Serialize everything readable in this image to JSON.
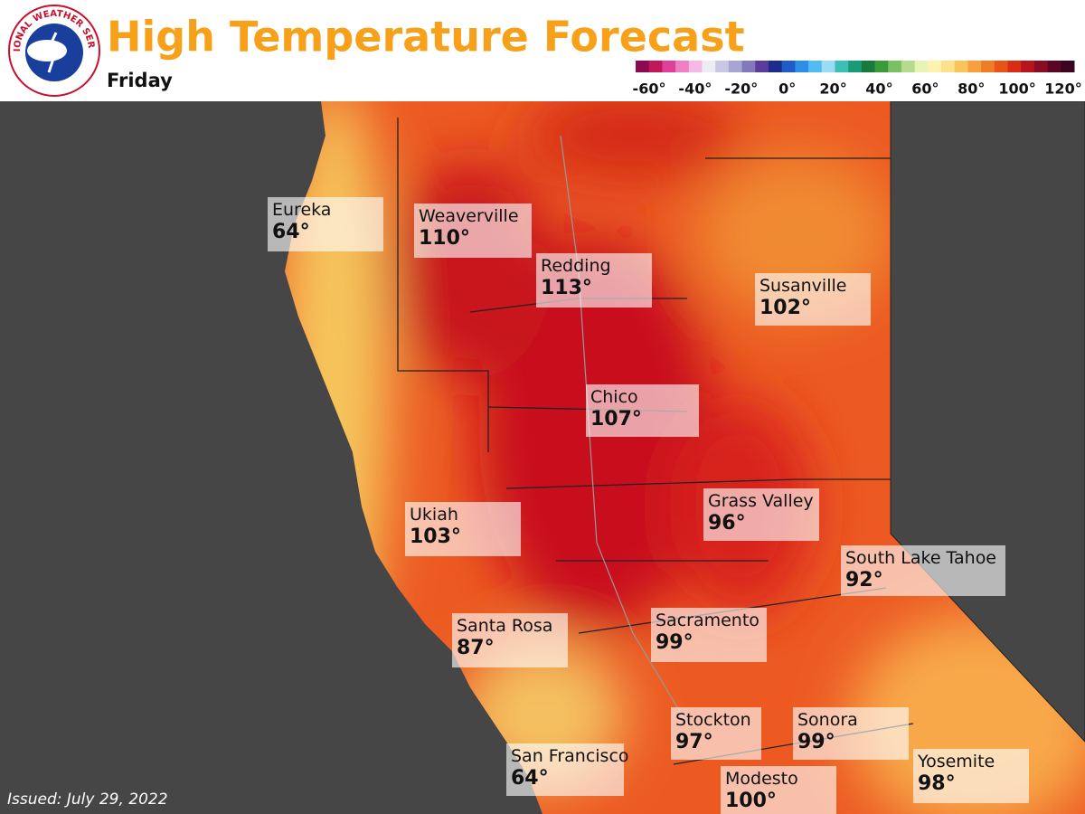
{
  "header": {
    "title": "High Temperature Forecast",
    "subtitle": "Friday",
    "logo_text": "NATIONAL WEATHER SERVICE"
  },
  "legend": {
    "colors": [
      "#8b0a50",
      "#c2185b",
      "#e0409a",
      "#ee7fc4",
      "#f6b8e4",
      "#ececf4",
      "#c8c8e4",
      "#a8a4d4",
      "#8478bc",
      "#5a3c9c",
      "#1c2c8c",
      "#1f5cc8",
      "#2c8ee6",
      "#52bcf2",
      "#9adcf6",
      "#3cc0b4",
      "#1b9a78",
      "#157a3c",
      "#3a9a3a",
      "#7cc064",
      "#b4dc8c",
      "#e6f4b4",
      "#fff2b0",
      "#fde08a",
      "#fbc35c",
      "#f8a040",
      "#f07c28",
      "#e85418",
      "#d82c14",
      "#b8141c",
      "#8a0c20",
      "#5c0626",
      "#3c0420"
    ],
    "labels": [
      "-60°",
      "-40°",
      "-20°",
      "0°",
      "20°",
      "40°",
      "60°",
      "80°",
      "100°",
      "120°"
    ]
  },
  "cities": [
    {
      "name": "Eureka",
      "temp": "64°"
    },
    {
      "name": "Weaverville",
      "temp": "110°"
    },
    {
      "name": "Redding",
      "temp": "113°"
    },
    {
      "name": "Susanville",
      "temp": "102°"
    },
    {
      "name": "Chico",
      "temp": "107°"
    },
    {
      "name": "Grass Valley",
      "temp": "96°"
    },
    {
      "name": "Ukiah",
      "temp": "103°"
    },
    {
      "name": "South Lake Tahoe",
      "temp": "92°"
    },
    {
      "name": "Santa Rosa",
      "temp": "87°"
    },
    {
      "name": "Sacramento",
      "temp": "99°"
    },
    {
      "name": "Stockton",
      "temp": "97°"
    },
    {
      "name": "Sonora",
      "temp": "99°"
    },
    {
      "name": "San Francisco",
      "temp": "64°"
    },
    {
      "name": "Modesto",
      "temp": "100°"
    },
    {
      "name": "Yosemite",
      "temp": "98°"
    }
  ],
  "footer": {
    "issued": "Issued: July 29, 2022"
  }
}
